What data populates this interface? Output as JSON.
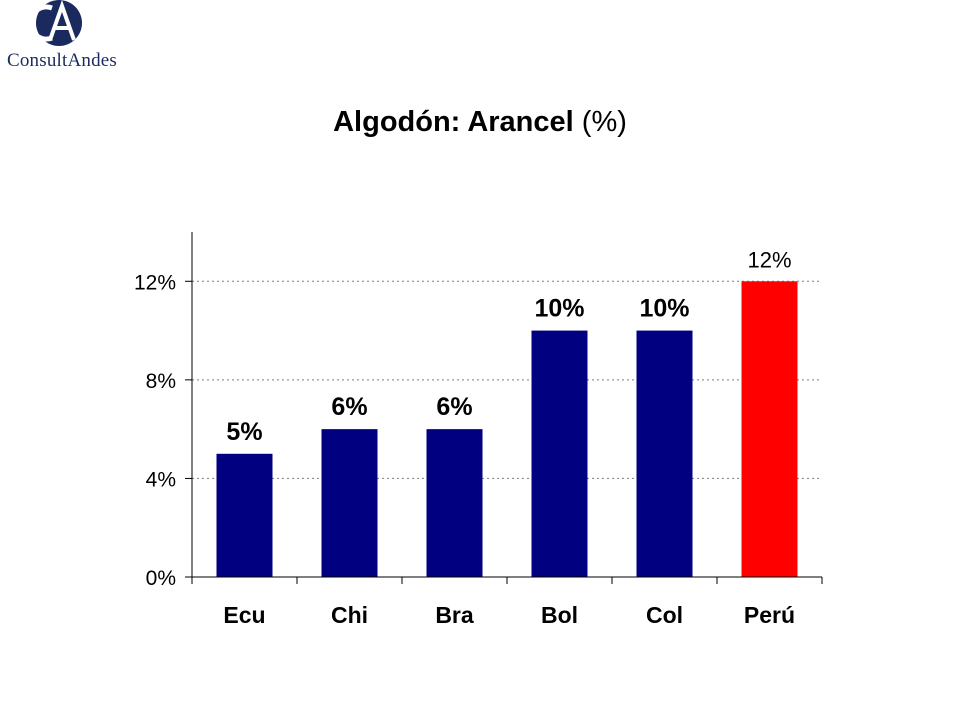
{
  "logo": {
    "initials": "CA",
    "name": "ConsultAndes",
    "colors": {
      "circle": "#1a2a5e",
      "text": "#1a2a5e"
    }
  },
  "chart_data": {
    "type": "bar",
    "title": "Algodón: Arancel",
    "title_suffix": "(%)",
    "categories": [
      "Ecu",
      "Chi",
      "Bra",
      "Bol",
      "Col",
      "Perú"
    ],
    "values": [
      5,
      6,
      6,
      10,
      10,
      12
    ],
    "data_labels": [
      "5%",
      "6%",
      "6%",
      "10%",
      "10%",
      "12%"
    ],
    "y_ticks": [
      0,
      4,
      8,
      12
    ],
    "y_tick_labels": [
      "0%",
      "4%",
      "8%",
      "12%"
    ],
    "ylim": [
      0,
      14
    ],
    "grid": true,
    "colors": [
      "#000080",
      "#000080",
      "#000080",
      "#000080",
      "#000080",
      "#ff0000"
    ]
  }
}
